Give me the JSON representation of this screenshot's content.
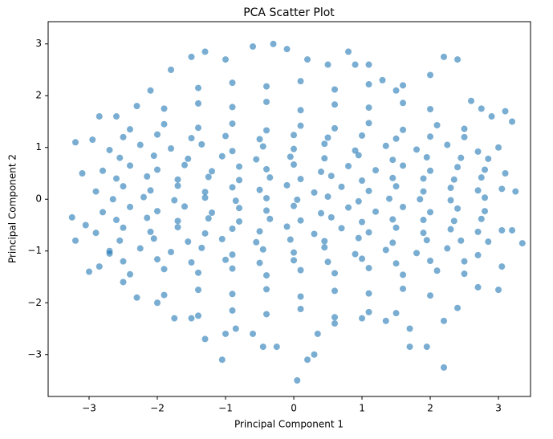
{
  "chart_data": {
    "type": "scatter",
    "title": "PCA Scatter Plot",
    "x_label": "Principal Component 1",
    "y_label": "Principal Component 2",
    "color": "#1f77b4",
    "alpha": 0.6,
    "xlim": [
      -3.6,
      3.47
    ],
    "ylim": [
      -3.81,
      3.43
    ],
    "xticks": [
      {
        "value": -3,
        "label": "−3"
      },
      {
        "value": -2,
        "label": "−2"
      },
      {
        "value": -1,
        "label": "−1"
      },
      0,
      1,
      2,
      3
    ],
    "yticks": [
      {
        "value": -3,
        "label": "−3"
      },
      {
        "value": -2,
        "label": "−2"
      },
      {
        "value": -1,
        "label": "−1"
      },
      0,
      1,
      2,
      3
    ],
    "x": [
      -3.2,
      -3.25,
      -3.2,
      -3.1,
      -2.95,
      -2.85,
      -2.6,
      -2.3,
      -2.1,
      -1.8,
      -1.5,
      -1.3,
      -1.0,
      -0.6,
      -0.3,
      -0.1,
      0.2,
      0.5,
      0.8,
      0.9,
      1.1,
      1.3,
      1.6,
      2.0,
      2.2,
      2.4,
      2.6,
      2.75,
      2.9,
      3.1,
      3.2,
      3.0,
      3.1,
      3.25,
      3.35,
      3.2,
      3.05,
      3.0,
      2.7,
      2.4,
      2.2,
      2.2,
      1.95,
      1.7,
      1.7,
      1.35,
      1.0,
      0.6,
      0.35,
      0.3,
      0.05,
      0.2,
      -0.25,
      -0.45,
      -0.6,
      -0.85,
      -1.0,
      -1.05,
      -1.3,
      -1.5,
      -1.75,
      -2.0,
      -2.3,
      -2.5,
      -2.85,
      -3.0,
      -2.7,
      -3.05,
      -1.4,
      -0.9,
      -0.4,
      0.1,
      0.6,
      1.1,
      1.5,
      -1.9,
      -1.4,
      -0.9,
      -0.4,
      0.1,
      0.6,
      1.1,
      1.6,
      2.0,
      -2.4,
      -1.9,
      -1.4,
      -0.9,
      -0.4,
      0.1,
      0.6,
      1.1,
      1.6,
      2.1,
      2.5,
      -2.7,
      -2.25,
      -1.8,
      -1.35,
      -0.9,
      -0.45,
      0,
      0.45,
      0.9,
      1.35,
      1.8,
      2.25,
      2.7,
      -2.8,
      -2.4,
      -2,
      -1.6,
      -1.2,
      -0.8,
      -0.4,
      0,
      0.4,
      0.8,
      1.2,
      1.6,
      2,
      2.4,
      2.8,
      -2.9,
      -2.5,
      -2.1,
      -1.7,
      -1.3,
      -0.9,
      -0.5,
      -0.1,
      0.3,
      0.7,
      1.1,
      1.5,
      1.9,
      2.3,
      2.7,
      3.05,
      -2.8,
      -2.4,
      -2,
      -1.6,
      -1.2,
      -0.8,
      -0.4,
      0,
      0.4,
      0.8,
      1.2,
      1.6,
      2,
      2.4,
      2.8,
      -2.9,
      -2.5,
      -2.1,
      -1.7,
      -1.3,
      -0.9,
      -0.5,
      -0.1,
      0.3,
      0.7,
      1.1,
      1.5,
      1.9,
      2.3,
      2.7,
      3.05,
      -2.7,
      -2.25,
      -1.8,
      -1.35,
      -0.9,
      -0.45,
      0,
      0.45,
      0.9,
      1.35,
      1.8,
      2.25,
      2.7,
      -2.4,
      -1.9,
      -1.4,
      -0.9,
      -0.4,
      0.1,
      0.6,
      1.1,
      1.6,
      2.1,
      2.5,
      -1.9,
      -1.4,
      -0.9,
      -0.4,
      0.1,
      0.6,
      1.1,
      1.6,
      2.0,
      -1.4,
      -0.9,
      -0.4,
      0.1,
      0.6,
      1.1,
      1.5,
      -2.5,
      -2.0,
      -1.5,
      -1.0,
      -0.5,
      0,
      0.5,
      1,
      1.5,
      2,
      2.5,
      -2.55,
      -2.05,
      -1.55,
      -1.05,
      -0.55,
      -0.05,
      0.45,
      0.95,
      1.45,
      1.95,
      2.45,
      2.85,
      -2.6,
      -2.15,
      -1.7,
      -1.25,
      -0.8,
      -0.35,
      0.1,
      0.55,
      1.0,
      1.45,
      1.9,
      2.35,
      2.75,
      -2.65,
      -2.2,
      -1.75,
      -1.3,
      -0.85,
      -0.4,
      0.05,
      0.5,
      0.95,
      1.4,
      1.85,
      2.3,
      2.8,
      -2.6,
      -2.15,
      -1.7,
      -1.25,
      -0.8,
      -0.35,
      0.1,
      0.55,
      1.0,
      1.45,
      1.9,
      2.35,
      2.75,
      -2.55,
      -2.05,
      -1.55,
      -1.05,
      -0.55,
      -0.05,
      0.45,
      0.95,
      1.45,
      1.95,
      2.45,
      2.85,
      -2.5,
      -2.0,
      -1.5,
      -1.0,
      -0.5,
      0,
      0.5,
      1,
      1.5,
      2,
      2.5
    ],
    "values": [
      1.1,
      -0.35,
      -0.8,
      0.5,
      1.15,
      1.6,
      1.6,
      1.8,
      2.1,
      2.5,
      2.75,
      2.85,
      2.7,
      2.95,
      3.0,
      2.9,
      2.7,
      2.6,
      2.85,
      2.6,
      2.6,
      2.3,
      2.2,
      2.4,
      2.75,
      2.7,
      1.9,
      1.75,
      1.6,
      1.7,
      1.5,
      1.0,
      0.5,
      0.15,
      -0.85,
      -0.6,
      -1.3,
      -1.75,
      -1.7,
      -2.1,
      -2.35,
      -3.25,
      -2.85,
      -2.5,
      -2.85,
      -2.35,
      -2.3,
      -2.4,
      -2.6,
      -3.0,
      -3.5,
      -3.1,
      -2.85,
      -2.85,
      -2.6,
      -2.5,
      -2.6,
      -3.1,
      -2.7,
      -2.3,
      -2.3,
      -2.0,
      -1.9,
      -1.6,
      -1.3,
      -1.4,
      -1.0,
      -0.5,
      2.15,
      2.25,
      2.18,
      2.28,
      2.12,
      2.22,
      2.1,
      1.75,
      1.85,
      1.78,
      1.88,
      1.72,
      1.83,
      1.77,
      1.86,
      1.74,
      1.35,
      1.45,
      1.38,
      1.46,
      1.33,
      1.42,
      1.37,
      1.47,
      1.34,
      1.43,
      1.36,
      0.95,
      1.05,
      0.98,
      1.06,
      0.93,
      1.02,
      0.97,
      1.07,
      0.94,
      1.03,
      0.96,
      1.05,
      0.92,
      0.55,
      0.65,
      0.57,
      0.66,
      0.54,
      0.63,
      0.58,
      0.67,
      0.53,
      0.64,
      0.56,
      0.65,
      0.55,
      0.62,
      0.57,
      0.15,
      0.25,
      0.17,
      0.26,
      0.14,
      0.23,
      0.18,
      0.27,
      0.13,
      0.24,
      0.16,
      0.25,
      0.15,
      0.22,
      0.17,
      0.2,
      -0.25,
      -0.15,
      -0.23,
      -0.14,
      -0.26,
      -0.17,
      -0.22,
      -0.13,
      -0.27,
      -0.16,
      -0.24,
      -0.15,
      -0.25,
      -0.18,
      -0.23,
      -0.65,
      -0.55,
      -0.63,
      -0.54,
      -0.66,
      -0.57,
      -0.62,
      -0.53,
      -0.67,
      -0.56,
      -0.64,
      -0.55,
      -0.65,
      -0.58,
      -0.63,
      -0.6,
      -1.05,
      -0.95,
      -1.02,
      -0.94,
      -1.07,
      -0.97,
      -1.03,
      -0.93,
      -1.06,
      -0.98,
      -1.04,
      -0.95,
      -1.08,
      -1.45,
      -1.35,
      -1.42,
      -1.34,
      -1.47,
      -1.37,
      -1.43,
      -1.33,
      -1.46,
      -1.38,
      -1.44,
      -1.85,
      -1.75,
      -1.83,
      -1.74,
      -1.88,
      -1.77,
      -1.82,
      -1.73,
      -1.86,
      -2.25,
      -2.15,
      -2.22,
      -2.12,
      -2.28,
      -2.18,
      -2.2,
      1.2,
      1.25,
      1.18,
      1.22,
      1.16,
      1.24,
      1.19,
      1.23,
      1.17,
      1.21,
      1.2,
      0.8,
      0.84,
      0.78,
      0.83,
      0.77,
      0.82,
      0.79,
      0.85,
      0.76,
      0.81,
      0.8,
      0.78,
      0.4,
      0.44,
      0.38,
      0.43,
      0.37,
      0.42,
      0.39,
      0.45,
      0.36,
      0.41,
      0.4,
      0.38,
      0.42,
      0.0,
      0.04,
      -0.02,
      0.03,
      -0.03,
      0.02,
      -0.01,
      0.05,
      -0.04,
      0.01,
      0.0,
      -0.02,
      0.03,
      -0.4,
      -0.36,
      -0.42,
      -0.37,
      -0.43,
      -0.38,
      -0.41,
      -0.35,
      -0.44,
      -0.39,
      -0.4,
      -0.42,
      -0.38,
      -0.8,
      -0.76,
      -0.82,
      -0.77,
      -0.83,
      -0.78,
      -0.81,
      -0.75,
      -0.84,
      -0.79,
      -0.8,
      -0.82,
      -1.2,
      -1.16,
      -1.22,
      -1.17,
      -1.23,
      -1.18,
      -1.21,
      -1.15,
      -1.24,
      -1.19,
      -1.2
    ]
  }
}
